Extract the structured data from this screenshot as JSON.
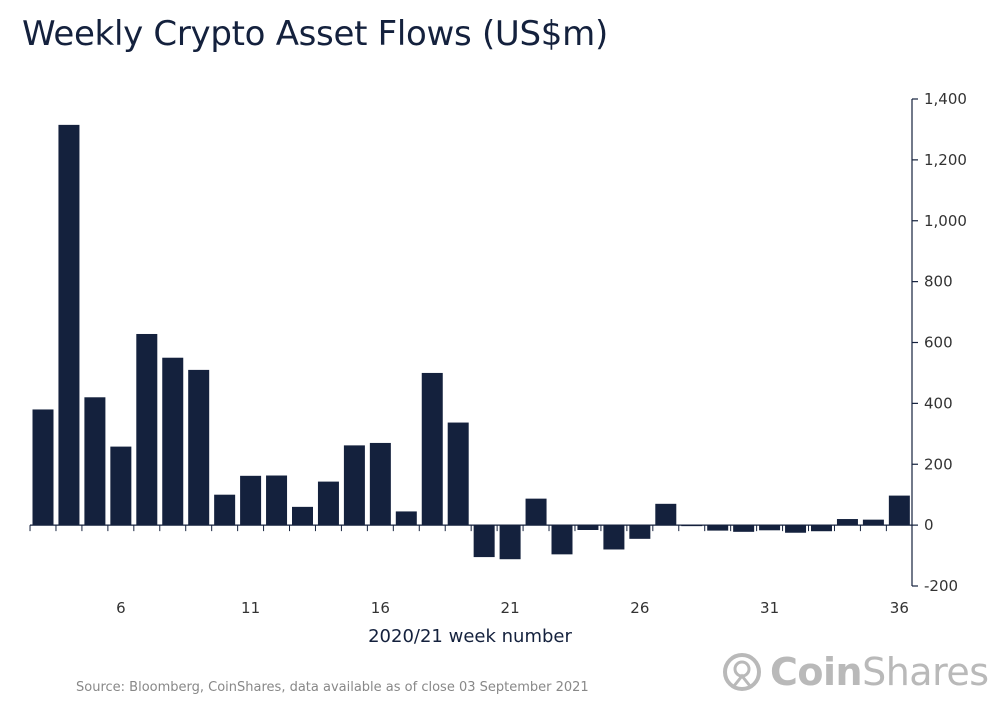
{
  "title": "Weekly Crypto Asset Flows (US$m)",
  "source": "Source: Bloomberg, CoinShares, data available as of close 03 September 2021",
  "logo": {
    "part1": "Coin",
    "part2": "Shares"
  },
  "colors": {
    "bar": "#14213d",
    "axis": "#14213d",
    "logo": "#b9b9b9"
  },
  "chart_data": {
    "type": "bar",
    "xlabel": "2020/21 week number",
    "ylabel": "",
    "ylim": [
      -200,
      1400
    ],
    "y_ticks": [
      -200,
      0,
      200,
      400,
      600,
      800,
      1000,
      1200,
      1400
    ],
    "y_tick_labels": [
      "-200",
      "0",
      "200",
      "400",
      "600",
      "800",
      "1,000",
      "1,200",
      "1,400"
    ],
    "y_axis_side": "right",
    "x_ticks": [
      6,
      11,
      16,
      21,
      26,
      31,
      36
    ],
    "categories": [
      3,
      4,
      5,
      6,
      7,
      8,
      9,
      10,
      11,
      12,
      13,
      14,
      15,
      16,
      17,
      18,
      19,
      20,
      21,
      22,
      23,
      24,
      25,
      26,
      27,
      28,
      29,
      30,
      31,
      32,
      33,
      34,
      35,
      36
    ],
    "values": [
      380,
      1315,
      420,
      258,
      628,
      550,
      510,
      100,
      162,
      163,
      60,
      143,
      262,
      270,
      45,
      500,
      337,
      -105,
      -112,
      87,
      -96,
      -16,
      -80,
      -45,
      70,
      -3,
      -18,
      -22,
      -17,
      -25,
      -20,
      20,
      18,
      97
    ],
    "grid": false
  }
}
